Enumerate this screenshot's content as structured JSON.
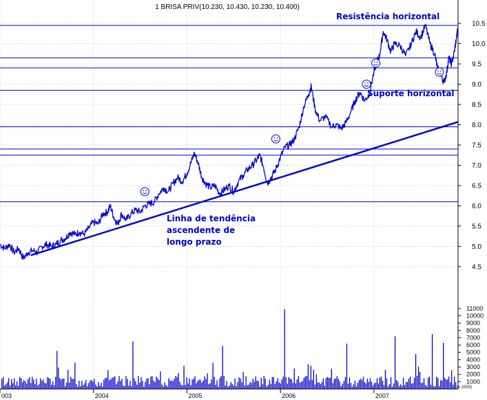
{
  "chart_data": {
    "type": "line",
    "title": "1 BRISA PRIV(10.230, 10.430, 10.230, 10.400)",
    "price_axis": {
      "ylim": [
        4.0,
        10.75
      ],
      "ticks": [
        "10.5",
        "10.0",
        "9.5",
        "9.0",
        "8.5",
        "8.0",
        "7.5",
        "7.0",
        "6.5",
        "6.0",
        "5.5",
        "5.0",
        "4.5"
      ]
    },
    "volume_axis": {
      "ylim": [
        0,
        12000
      ],
      "ticks": [
        "11000",
        "10000",
        "9000",
        "8000",
        "7000",
        "6000",
        "5000",
        "4000",
        "3000",
        "2000",
        "1000"
      ],
      "unit_label": "(x 1000)"
    },
    "x_axis": {
      "range": [
        2003.0,
        2007.9
      ],
      "ticks": [
        {
          "t": 2003.0,
          "label": "003"
        },
        {
          "t": 2004.0,
          "label": "2004"
        },
        {
          "t": 2005.0,
          "label": "2005"
        },
        {
          "t": 2006.0,
          "label": "2006"
        },
        {
          "t": 2007.0,
          "label": "2007"
        }
      ]
    },
    "grid": true,
    "horizontal_levels": [
      10.45,
      9.65,
      9.4,
      8.85,
      7.95,
      7.4,
      7.25,
      6.1
    ],
    "trend_line": {
      "start": [
        2003.33,
        4.78
      ],
      "end": [
        2007.9,
        8.07
      ]
    },
    "price_series": [
      [
        2003.0,
        5.05
      ],
      [
        2003.05,
        4.95
      ],
      [
        2003.1,
        5.05
      ],
      [
        2003.15,
        4.85
      ],
      [
        2003.2,
        4.95
      ],
      [
        2003.25,
        4.7
      ],
      [
        2003.3,
        4.85
      ],
      [
        2003.35,
        4.9
      ],
      [
        2003.4,
        4.85
      ],
      [
        2003.45,
        5.0
      ],
      [
        2003.5,
        5.05
      ],
      [
        2003.55,
        5.0
      ],
      [
        2003.6,
        5.05
      ],
      [
        2003.65,
        5.15
      ],
      [
        2003.7,
        5.2
      ],
      [
        2003.75,
        5.35
      ],
      [
        2003.8,
        5.3
      ],
      [
        2003.85,
        5.35
      ],
      [
        2003.9,
        5.3
      ],
      [
        2003.95,
        5.45
      ],
      [
        2004.0,
        5.6
      ],
      [
        2004.05,
        5.55
      ],
      [
        2004.1,
        5.8
      ],
      [
        2004.15,
        5.85
      ],
      [
        2004.18,
        6.0
      ],
      [
        2004.22,
        5.7
      ],
      [
        2004.26,
        5.55
      ],
      [
        2004.3,
        5.8
      ],
      [
        2004.35,
        5.65
      ],
      [
        2004.4,
        5.8
      ],
      [
        2004.45,
        5.9
      ],
      [
        2004.5,
        5.85
      ],
      [
        2004.55,
        6.0
      ],
      [
        2004.6,
        6.05
      ],
      [
        2004.65,
        6.1
      ],
      [
        2004.7,
        6.3
      ],
      [
        2004.75,
        6.45
      ],
      [
        2004.8,
        6.35
      ],
      [
        2004.85,
        6.55
      ],
      [
        2004.9,
        6.7
      ],
      [
        2004.95,
        6.6
      ],
      [
        2005.0,
        6.8
      ],
      [
        2005.04,
        7.05
      ],
      [
        2005.08,
        7.3
      ],
      [
        2005.12,
        7.05
      ],
      [
        2005.16,
        6.7
      ],
      [
        2005.2,
        6.55
      ],
      [
        2005.25,
        6.45
      ],
      [
        2005.3,
        6.5
      ],
      [
        2005.35,
        6.3
      ],
      [
        2005.4,
        6.4
      ],
      [
        2005.45,
        6.5
      ],
      [
        2005.5,
        6.35
      ],
      [
        2005.55,
        6.6
      ],
      [
        2005.6,
        6.75
      ],
      [
        2005.65,
        6.9
      ],
      [
        2005.7,
        7.0
      ],
      [
        2005.75,
        7.15
      ],
      [
        2005.78,
        7.25
      ],
      [
        2005.82,
        6.95
      ],
      [
        2005.86,
        6.55
      ],
      [
        2005.9,
        6.7
      ],
      [
        2005.95,
        6.9
      ],
      [
        2006.0,
        7.2
      ],
      [
        2006.05,
        7.45
      ],
      [
        2006.1,
        7.5
      ],
      [
        2006.15,
        7.65
      ],
      [
        2006.2,
        7.95
      ],
      [
        2006.25,
        8.45
      ],
      [
        2006.3,
        8.75
      ],
      [
        2006.33,
        8.95
      ],
      [
        2006.37,
        8.4
      ],
      [
        2006.42,
        8.1
      ],
      [
        2006.48,
        8.2
      ],
      [
        2006.55,
        7.95
      ],
      [
        2006.6,
        8.0
      ],
      [
        2006.65,
        7.9
      ],
      [
        2006.7,
        8.05
      ],
      [
        2006.75,
        8.3
      ],
      [
        2006.8,
        8.6
      ],
      [
        2006.85,
        8.8
      ],
      [
        2006.9,
        8.6
      ],
      [
        2006.95,
        8.75
      ],
      [
        2007.0,
        9.3
      ],
      [
        2007.03,
        9.55
      ],
      [
        2007.06,
        9.7
      ],
      [
        2007.1,
        10.3
      ],
      [
        2007.14,
        10.1
      ],
      [
        2007.18,
        9.8
      ],
      [
        2007.22,
        10.0
      ],
      [
        2007.28,
        9.95
      ],
      [
        2007.34,
        9.7
      ],
      [
        2007.4,
        10.0
      ],
      [
        2007.45,
        10.3
      ],
      [
        2007.5,
        10.15
      ],
      [
        2007.55,
        10.45
      ],
      [
        2007.6,
        10.0
      ],
      [
        2007.65,
        9.75
      ],
      [
        2007.68,
        9.4
      ],
      [
        2007.72,
        9.2
      ],
      [
        2007.75,
        9.05
      ],
      [
        2007.78,
        9.3
      ],
      [
        2007.8,
        9.65
      ],
      [
        2007.83,
        9.5
      ],
      [
        2007.86,
        9.8
      ],
      [
        2007.88,
        10.1
      ],
      [
        2007.9,
        10.4
      ]
    ],
    "annotations": {
      "resistance": "Resistência horizontal",
      "support": "Suporte horizontal",
      "trend_line1": "Linha de tendência",
      "trend_line2": "ascendente de",
      "trend_line3": "longo prazo"
    },
    "smileys": [
      [
        2004.55,
        6.35
      ],
      [
        2005.95,
        7.65
      ],
      [
        2006.92,
        9.0
      ],
      [
        2007.02,
        9.52
      ],
      [
        2007.7,
        9.3
      ]
    ],
    "colors": {
      "series": "#0000cc",
      "levels": "#0000cc",
      "annotations": "#0000cc",
      "grid": "#c8c8c8",
      "axis_text": "#000000"
    }
  }
}
